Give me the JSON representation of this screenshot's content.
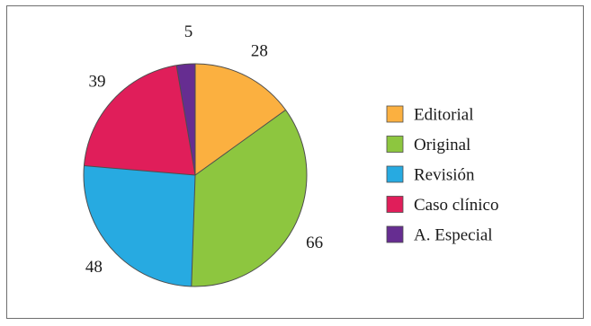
{
  "chart_data": {
    "type": "pie",
    "title": "",
    "categories": [
      "Editorial",
      "Original",
      "Revisión",
      "Caso clínico",
      "A. Especial"
    ],
    "values": [
      28,
      66,
      48,
      39,
      5
    ],
    "colors": [
      "#fbb040",
      "#8dc63f",
      "#27aae1",
      "#e01e5a",
      "#662d91"
    ],
    "start_angle_deg": 0,
    "direction": "clockwise",
    "legend_position": "right"
  }
}
